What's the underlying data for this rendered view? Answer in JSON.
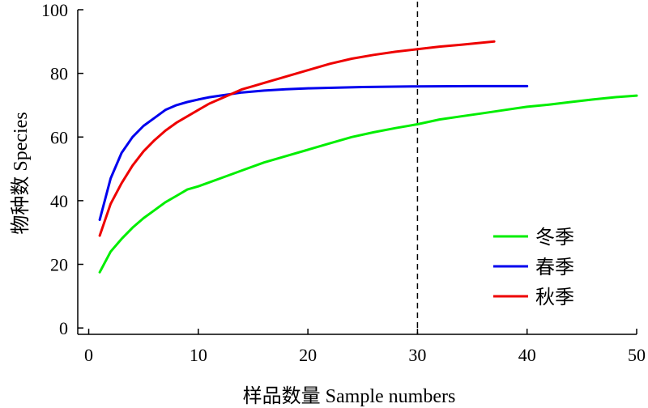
{
  "chart_data": {
    "type": "line",
    "xlabel": "样品数量 Sample numbers",
    "ylabel": "物种数 Species",
    "xlim": [
      -1,
      50
    ],
    "ylim": [
      -2,
      100
    ],
    "xticks": [
      0,
      10,
      20,
      30,
      40,
      50
    ],
    "yticks": [
      0,
      20,
      40,
      60,
      80,
      100
    ],
    "grid": false,
    "legend_position": "bottom-right",
    "reference_line": {
      "x": 30,
      "style": "dashed"
    },
    "series": [
      {
        "name": "冬季",
        "color": "#00ee00",
        "x": [
          1,
          2,
          3,
          4,
          5,
          6,
          7,
          8,
          9,
          10,
          12,
          14,
          16,
          18,
          20,
          22,
          24,
          26,
          28,
          30,
          32,
          34,
          36,
          38,
          40,
          42,
          44,
          46,
          48,
          50
        ],
        "y": [
          17.5,
          24,
          28,
          31.5,
          34.5,
          37,
          39.5,
          41.5,
          43.5,
          44.5,
          47,
          49.5,
          52,
          54,
          56,
          58,
          60,
          61.5,
          62.8,
          64,
          65.5,
          66.5,
          67.5,
          68.5,
          69.5,
          70.2,
          71,
          71.8,
          72.5,
          73
        ]
      },
      {
        "name": "春季",
        "color": "#0000ee",
        "x": [
          1,
          2,
          3,
          4,
          5,
          6,
          7,
          8,
          9,
          10,
          11,
          12,
          13,
          14,
          16,
          18,
          20,
          25,
          30,
          35,
          40
        ],
        "y": [
          34,
          47,
          55,
          60,
          63.5,
          66,
          68.5,
          70,
          71,
          71.8,
          72.5,
          73,
          73.5,
          74,
          74.6,
          75,
          75.3,
          75.7,
          75.9,
          76,
          76
        ]
      },
      {
        "name": "秋季",
        "color": "#ee0000",
        "x": [
          1,
          2,
          3,
          4,
          5,
          6,
          7,
          8,
          9,
          10,
          11,
          12,
          13,
          14,
          15,
          16,
          18,
          20,
          22,
          24,
          26,
          28,
          30,
          32,
          34,
          37
        ],
        "y": [
          29,
          39,
          45.5,
          51,
          55.5,
          59,
          62,
          64.5,
          66.5,
          68.5,
          70.5,
          72,
          73.5,
          75,
          76,
          77,
          79,
          81,
          83,
          84.6,
          85.8,
          86.8,
          87.6,
          88.4,
          89,
          90
        ]
      }
    ]
  }
}
